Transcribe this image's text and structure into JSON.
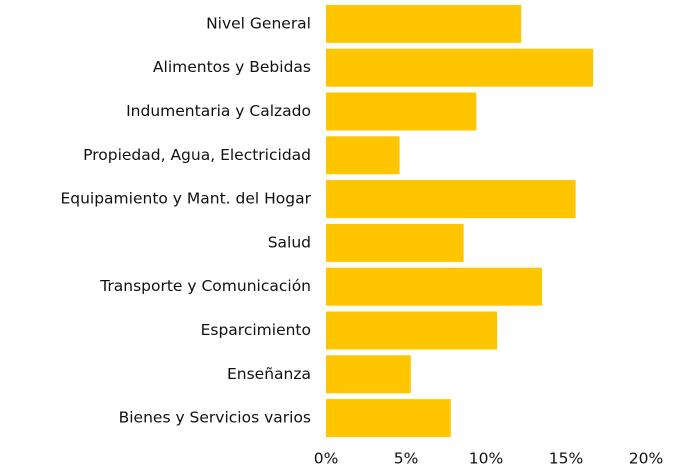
{
  "chart_data": {
    "type": "bar",
    "orientation": "horizontal",
    "categories": [
      "Nivel General",
      "Alimentos y Bebidas",
      "Indumentaria y Calzado",
      "Propiedad, Agua, Electricidad",
      "Equipamiento y Mant. del Hogar",
      "Salud",
      "Transporte y Comunicación",
      "Esparcimiento",
      "Enseñanza",
      "Bienes y Servicios varios"
    ],
    "values": [
      12.2,
      16.7,
      9.4,
      4.6,
      15.6,
      8.6,
      13.5,
      10.7,
      5.3,
      7.8
    ],
    "color": "#ffc600",
    "xlim": [
      0,
      20
    ],
    "xticks": [
      {
        "value": 0,
        "label": "0%"
      },
      {
        "value": 5,
        "label": "5%"
      },
      {
        "value": 10,
        "label": "10%"
      },
      {
        "value": 15,
        "label": "15%"
      },
      {
        "value": 20,
        "label": "20%"
      }
    ],
    "grid": false
  }
}
